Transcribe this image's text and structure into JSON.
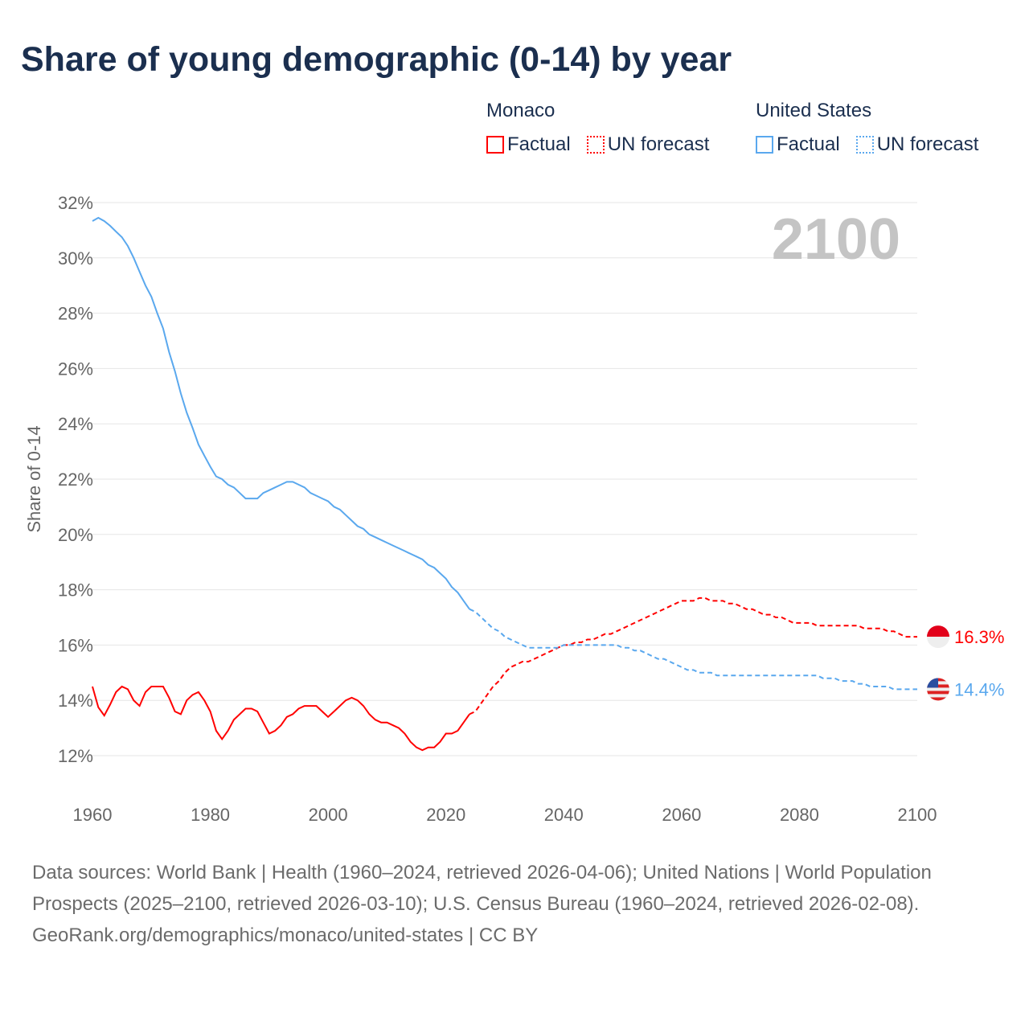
{
  "title": "Share of young demographic (0-14) by year",
  "legend": [
    {
      "group": "Monaco",
      "factual": "Factual",
      "forecast": "UN forecast",
      "color": "#ff0000"
    },
    {
      "group": "United States",
      "factual": "Factual",
      "forecast": "UN forecast",
      "color": "#5aa8ee"
    }
  ],
  "year_watermark": "2100",
  "chart_data": {
    "type": "line",
    "title": "Share of young demographic (0-14) by year",
    "xlabel": "",
    "ylabel": "Share of 0-14",
    "xlim": [
      1960,
      2100
    ],
    "ylim": [
      11,
      32
    ],
    "x_ticks": [
      "1960",
      "1980",
      "2000",
      "2020",
      "2040",
      "2060",
      "2080",
      "2100"
    ],
    "y_ticks": [
      "12%",
      "14%",
      "16%",
      "18%",
      "20%",
      "22%",
      "24%",
      "26%",
      "28%",
      "30%",
      "32%"
    ],
    "grid": true,
    "start_year": 1960,
    "last_factual_year": 2024,
    "series": [
      {
        "name": "Monaco",
        "color": "#ff0000",
        "end_label": "16.3%",
        "values": [
          14.5,
          13.75,
          13.45,
          13.85,
          14.3,
          14.5,
          14.4,
          14.0,
          13.8,
          14.3,
          14.5,
          14.5,
          14.5,
          14.1,
          13.6,
          13.5,
          14.0,
          14.2,
          14.3,
          14.0,
          13.6,
          12.9,
          12.6,
          12.9,
          13.3,
          13.5,
          13.7,
          13.7,
          13.6,
          13.2,
          12.8,
          12.9,
          13.1,
          13.4,
          13.5,
          13.7,
          13.8,
          13.8,
          13.8,
          13.6,
          13.4,
          13.6,
          13.8,
          14.0,
          14.1,
          14.0,
          13.8,
          13.5,
          13.3,
          13.2,
          13.2,
          13.1,
          13.0,
          12.8,
          12.5,
          12.3,
          12.2,
          12.3,
          12.3,
          12.5,
          12.8,
          12.8,
          12.9,
          13.2,
          13.5,
          13.6,
          13.9,
          14.2,
          14.5,
          14.7,
          15.0,
          15.2,
          15.3,
          15.4,
          15.4,
          15.5,
          15.6,
          15.7,
          15.8,
          15.9,
          16.0,
          16.0,
          16.1,
          16.1,
          16.2,
          16.2,
          16.3,
          16.4,
          16.4,
          16.5,
          16.6,
          16.7,
          16.8,
          16.9,
          17.0,
          17.1,
          17.2,
          17.3,
          17.4,
          17.5,
          17.6,
          17.6,
          17.6,
          17.7,
          17.7,
          17.6,
          17.6,
          17.6,
          17.5,
          17.5,
          17.4,
          17.3,
          17.3,
          17.2,
          17.1,
          17.1,
          17.0,
          17.0,
          16.9,
          16.8,
          16.8,
          16.8,
          16.8,
          16.7,
          16.7,
          16.7,
          16.7,
          16.7,
          16.7,
          16.7,
          16.7,
          16.6,
          16.6,
          16.6,
          16.6,
          16.5,
          16.5,
          16.4,
          16.3,
          16.3,
          16.3
        ]
      },
      {
        "name": "United States",
        "color": "#5aa8ee",
        "end_label": "14.4%",
        "values": [
          31.33,
          31.45,
          31.33,
          31.16,
          30.95,
          30.75,
          30.43,
          30.0,
          29.5,
          29.0,
          28.6,
          28.0,
          27.45,
          26.6,
          25.9,
          25.1,
          24.4,
          23.85,
          23.25,
          22.85,
          22.45,
          22.1,
          22.0,
          21.8,
          21.7,
          21.5,
          21.3,
          21.3,
          21.3,
          21.5,
          21.6,
          21.7,
          21.8,
          21.9,
          21.9,
          21.8,
          21.7,
          21.5,
          21.4,
          21.3,
          21.2,
          21.0,
          20.9,
          20.7,
          20.5,
          20.3,
          20.2,
          20.0,
          19.9,
          19.8,
          19.7,
          19.6,
          19.5,
          19.4,
          19.3,
          19.2,
          19.1,
          18.9,
          18.8,
          18.6,
          18.4,
          18.1,
          17.9,
          17.6,
          17.3,
          17.2,
          17.0,
          16.8,
          16.6,
          16.5,
          16.3,
          16.2,
          16.1,
          16.0,
          15.9,
          15.9,
          15.9,
          15.9,
          15.9,
          15.9,
          16.0,
          16.0,
          16.0,
          16.0,
          16.0,
          16.0,
          16.0,
          16.0,
          16.0,
          16.0,
          15.9,
          15.9,
          15.8,
          15.8,
          15.7,
          15.6,
          15.5,
          15.5,
          15.4,
          15.3,
          15.2,
          15.1,
          15.1,
          15.0,
          15.0,
          15.0,
          14.9,
          14.9,
          14.9,
          14.9,
          14.9,
          14.9,
          14.9,
          14.9,
          14.9,
          14.9,
          14.9,
          14.9,
          14.9,
          14.9,
          14.9,
          14.9,
          14.9,
          14.9,
          14.8,
          14.8,
          14.8,
          14.7,
          14.7,
          14.7,
          14.6,
          14.6,
          14.5,
          14.5,
          14.5,
          14.5,
          14.4,
          14.4,
          14.4,
          14.4,
          14.4
        ]
      }
    ]
  },
  "sources": {
    "text": "Data sources: World Bank | Health (1960–2024, retrieved 2026-04-06); United Nations | World Population Prospects (2025–2100, retrieved 2026-03-10); U.S. Census Bureau (1960–2024, retrieved 2026-02-08).",
    "link": "GeoRank.org/demographics/monaco/united-states | CC BY"
  }
}
